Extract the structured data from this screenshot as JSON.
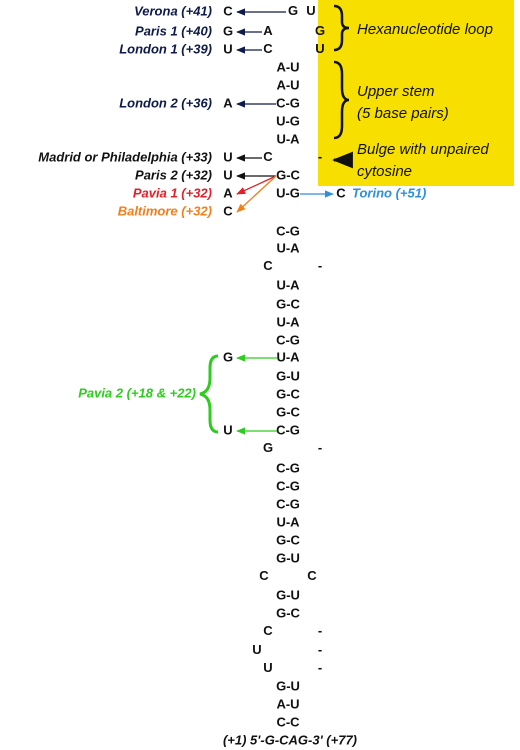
{
  "structure": {
    "rows": [
      "G U",
      "A G",
      "C U",
      "A-U",
      "A-U",
      "C-G",
      "U-G",
      "U-A",
      "C -",
      "G-C",
      "U-G",
      "C-G",
      "U-A",
      "C -",
      "U-A",
      "G-C",
      "U-A",
      "C-G",
      "U-A",
      "G-U",
      "G-C",
      "G-C",
      "C-G",
      "G -",
      "C-G",
      "C-G",
      "C-G",
      "U-A",
      "G-C",
      "G-U",
      "C C",
      "G-U",
      "G-C",
      "C -",
      "U -",
      "U -",
      "G-U",
      "A-U",
      "C-C"
    ],
    "ends": "(+1) 5'-G-CAG-3' (+77)"
  },
  "variants": [
    {
      "name": "Verona (+41)",
      "base": "C"
    },
    {
      "name": "Paris 1 (+40)",
      "base": "G"
    },
    {
      "name": "London 1 (+39)",
      "base": "U"
    },
    {
      "name": "London 2 (+36)",
      "base": "A"
    },
    {
      "name": "Madrid or Philadelphia (+33)",
      "base": "U"
    },
    {
      "name": "Paris 2 (+32)",
      "base": "U"
    },
    {
      "name": "Pavia 1 (+32)",
      "base": "A"
    },
    {
      "name": "Baltimore (+32)",
      "base": "C"
    },
    {
      "name": "Torino (+51)",
      "base": "C"
    },
    {
      "name": "Pavia 2 (+18 & +22)",
      "bases": [
        "G",
        "U"
      ]
    }
  ],
  "annotations": [
    {
      "lines": [
        "Hexanucleotide loop"
      ]
    },
    {
      "lines": [
        "Upper stem",
        "(5 base pairs)"
      ]
    },
    {
      "lines": [
        "Bulge with unpaired",
        "cytosine"
      ]
    }
  ]
}
